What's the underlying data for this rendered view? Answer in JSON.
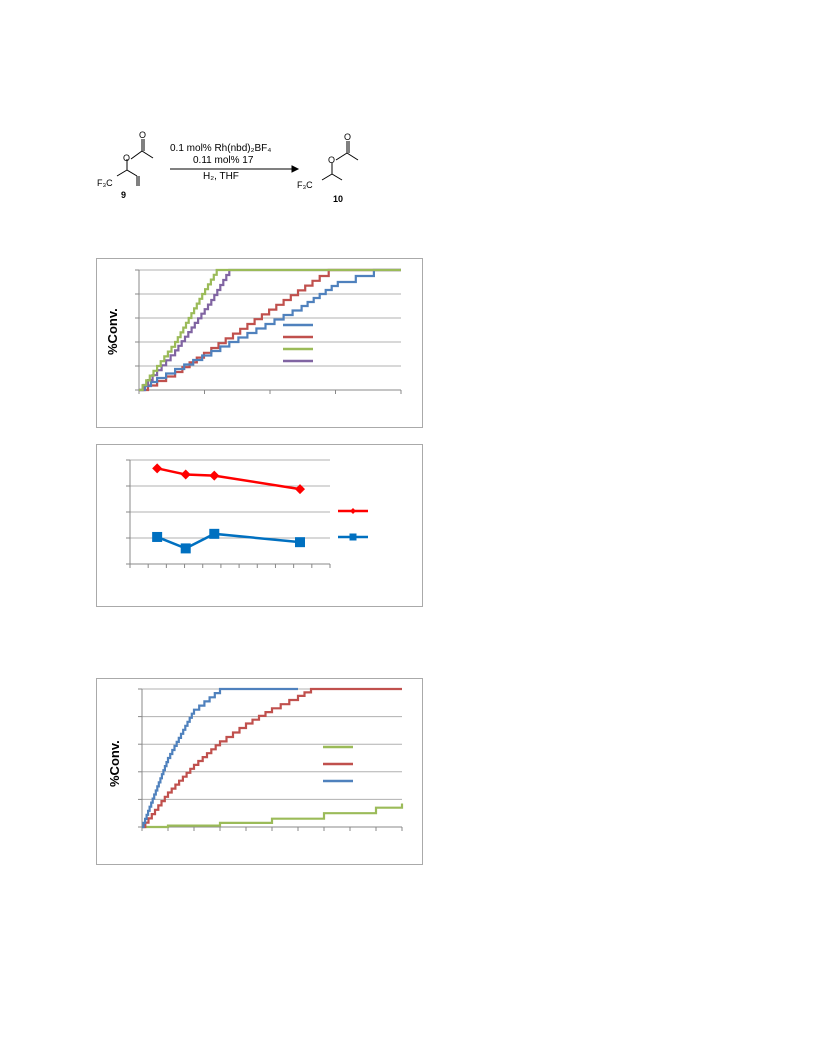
{
  "scheme": {
    "substrate_label": "9",
    "product_label": "10",
    "reagent_line1": "0.1 mol% Rh(nbd)₂BF₄",
    "reagent_line2": "0.11 mol% 17",
    "conditions": "H₂, THF",
    "cf3_left": "F₃C",
    "cf3_right": "F₃C",
    "o_atom_left": "O",
    "o_atom_left2": "O",
    "o_atom_right": "O",
    "o_atom_right2": "O"
  },
  "colors": {
    "blue": "#4f81bd",
    "red": "#c0504d",
    "green": "#9bbb59",
    "purple": "#8064a2",
    "bright_red": "#ff0000",
    "bright_blue": "#0070c0"
  },
  "chart_data": [
    {
      "type": "line",
      "ylabel": "%Conv.",
      "grid": true,
      "legend": "right",
      "series": [
        {
          "color": "#4f81bd",
          "points": [
            [
              0,
              0
            ],
            [
              0.1,
              10
            ],
            [
              0.3,
              25
            ],
            [
              0.5,
              40
            ],
            [
              0.7,
              55
            ],
            [
              0.9,
              70
            ],
            [
              1.0,
              80
            ],
            [
              1.1,
              90
            ],
            [
              1.2,
              95
            ],
            [
              1.3,
              100
            ],
            [
              1.45,
              100
            ]
          ]
        },
        {
          "color": "#c0504d",
          "points": [
            [
              0,
              0
            ],
            [
              0.2,
              15
            ],
            [
              0.4,
              35
            ],
            [
              0.6,
              55
            ],
            [
              0.8,
              75
            ],
            [
              1.0,
              95
            ],
            [
              1.05,
              100
            ],
            [
              1.45,
              100
            ]
          ]
        },
        {
          "color": "#9bbb59",
          "points": [
            [
              0,
              0
            ],
            [
              0.2,
              40
            ],
            [
              0.35,
              80
            ],
            [
              0.43,
              100
            ],
            [
              1.45,
              100
            ]
          ]
        },
        {
          "color": "#8064a2",
          "points": [
            [
              0,
              0
            ],
            [
              0.2,
              33
            ],
            [
              0.4,
              75
            ],
            [
              0.5,
              100
            ],
            [
              1.45,
              100
            ]
          ]
        }
      ]
    },
    {
      "type": "line",
      "grid": true,
      "legend": "right",
      "series": [
        {
          "color": "#ff0000",
          "marker": "diamond",
          "x": [
            1,
            2,
            3,
            6
          ],
          "y": [
            92,
            86,
            85,
            72
          ]
        },
        {
          "color": "#0070c0",
          "marker": "square",
          "x": [
            1,
            2,
            3,
            6
          ],
          "y": [
            26,
            15,
            29,
            21
          ]
        }
      ]
    },
    {
      "type": "line",
      "ylabel": "%Conv.",
      "grid": true,
      "legend": "right",
      "series": [
        {
          "color": "#9bbb59",
          "points": [
            [
              0,
              0
            ],
            [
              0.1,
              1
            ],
            [
              0.3,
              3
            ],
            [
              0.5,
              6
            ],
            [
              0.7,
              10
            ],
            [
              0.9,
              14
            ],
            [
              1.0,
              17
            ]
          ]
        },
        {
          "color": "#c0504d",
          "points": [
            [
              0,
              0
            ],
            [
              0.1,
              25
            ],
            [
              0.2,
              45
            ],
            [
              0.3,
              62
            ],
            [
              0.4,
              75
            ],
            [
              0.5,
              86
            ],
            [
              0.6,
              95
            ],
            [
              0.65,
              100
            ],
            [
              1.0,
              100
            ]
          ]
        },
        {
          "color": "#4f81bd",
          "points": [
            [
              0,
              0
            ],
            [
              0.1,
              50
            ],
            [
              0.2,
              85
            ],
            [
              0.3,
              100
            ],
            [
              0.6,
              100
            ]
          ]
        }
      ]
    }
  ]
}
